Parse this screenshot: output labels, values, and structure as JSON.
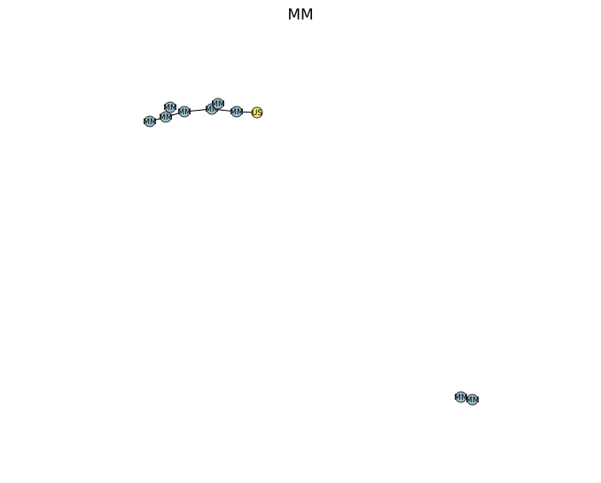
{
  "title": "MM",
  "colors": {
    "mm_node": "#9bbfce",
    "us_node": "#f2ea6a",
    "edge": "#000000"
  },
  "graph": {
    "nodes": [
      {
        "id": "n1",
        "label": "MM",
        "type": "mm"
      },
      {
        "id": "n2",
        "label": "MM",
        "type": "mm"
      },
      {
        "id": "n3",
        "label": "MM",
        "type": "mm"
      },
      {
        "id": "n4",
        "label": "MM",
        "type": "mm"
      },
      {
        "id": "n5",
        "label": "MM",
        "type": "mm"
      },
      {
        "id": "n6",
        "label": "MM",
        "type": "mm"
      },
      {
        "id": "n7",
        "label": "MM",
        "type": "mm"
      },
      {
        "id": "n8",
        "label": "US",
        "type": "us"
      },
      {
        "id": "n9",
        "label": "MM",
        "type": "mm"
      },
      {
        "id": "n10",
        "label": "MM",
        "type": "mm"
      }
    ],
    "edges": [
      {
        "source": "n1",
        "target": "n3"
      },
      {
        "source": "n2",
        "target": "n3"
      },
      {
        "source": "n3",
        "target": "n4"
      },
      {
        "source": "n4",
        "target": "n5"
      },
      {
        "source": "n6",
        "target": "n5"
      },
      {
        "source": "n5",
        "target": "n7"
      },
      {
        "source": "n7",
        "target": "n8"
      },
      {
        "source": "n9",
        "target": "n10"
      }
    ]
  }
}
